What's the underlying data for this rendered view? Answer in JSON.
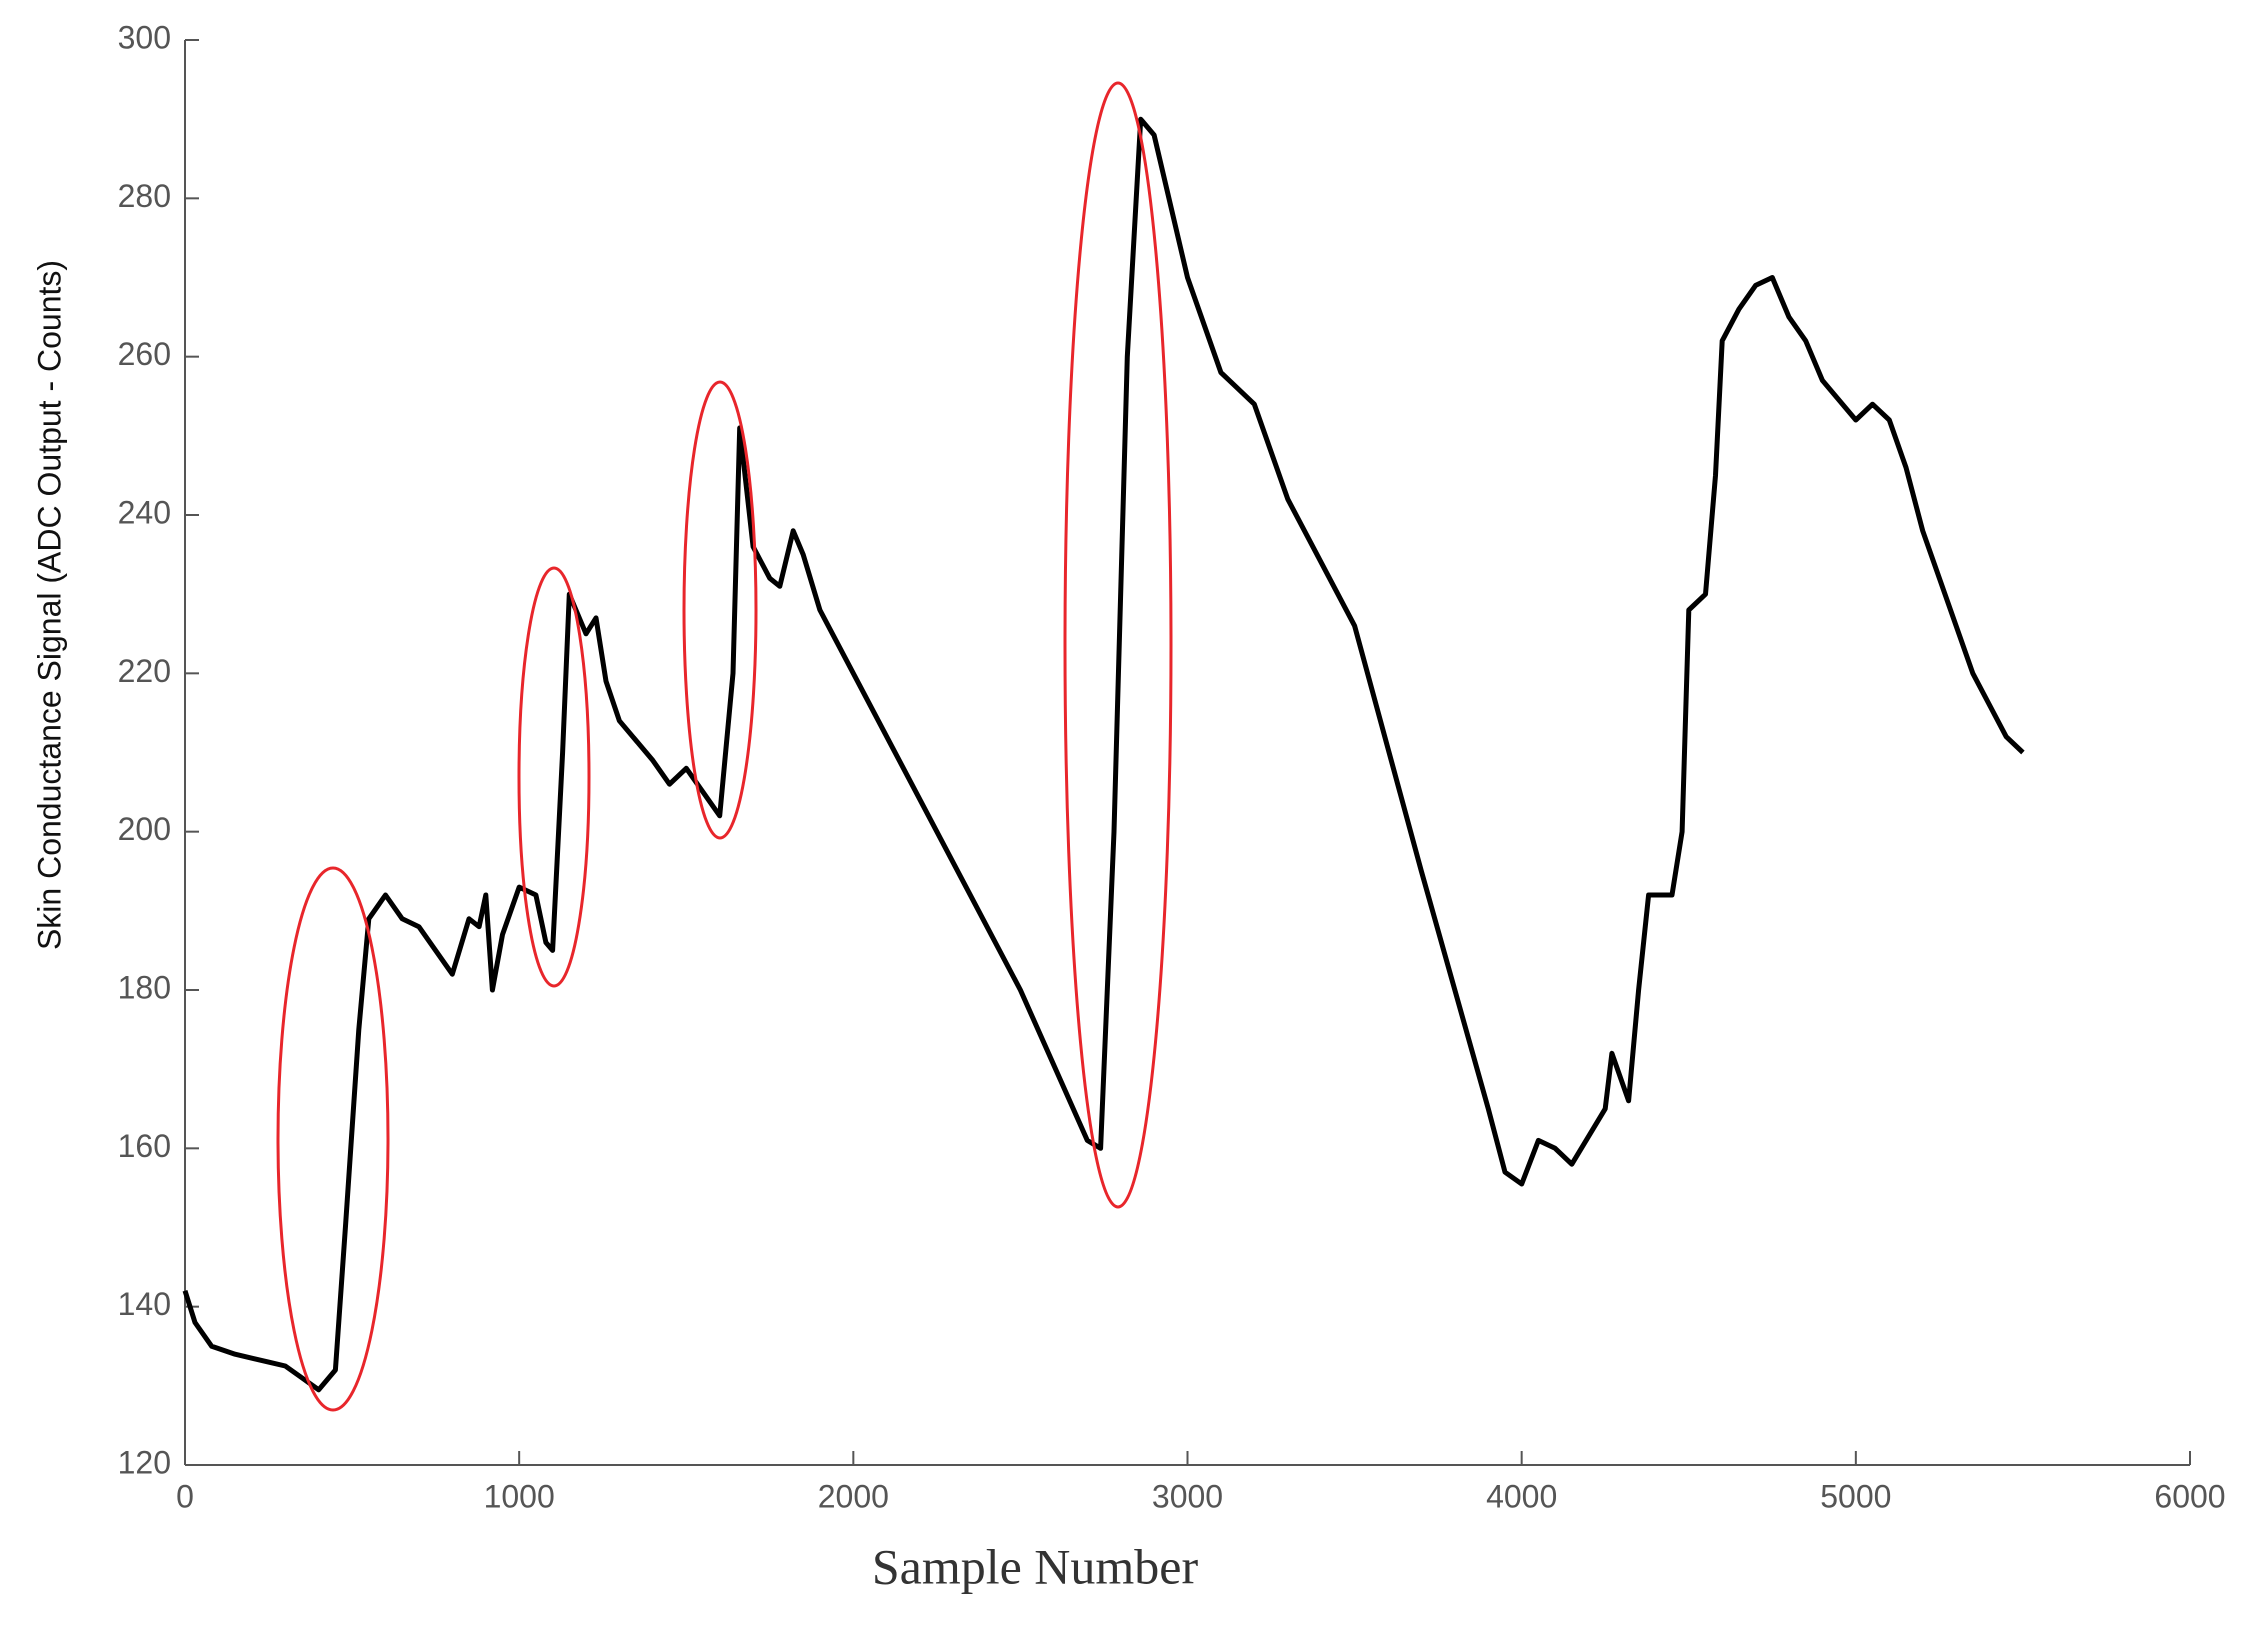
{
  "chart_data": {
    "type": "line",
    "x_label": "Sample Number",
    "y_label": "Skin Conductance Signal (ADC Output - Counts)",
    "xlim": [
      0,
      6000
    ],
    "xticks": [
      0,
      1000,
      2000,
      3000,
      4000,
      5000,
      6000
    ],
    "ylim": [
      120,
      300
    ],
    "yticks": [
      120,
      140,
      160,
      180,
      200,
      220,
      240,
      260,
      280,
      300
    ],
    "grid": false,
    "series": [
      {
        "color": "#000000",
        "x": [
          0,
          30,
          80,
          150,
          250,
          300,
          350,
          400,
          450,
          480,
          520,
          550,
          600,
          650,
          700,
          750,
          800,
          850,
          880,
          900,
          920,
          950,
          1000,
          1050,
          1080,
          1100,
          1130,
          1150,
          1200,
          1230,
          1260,
          1300,
          1400,
          1450,
          1500,
          1550,
          1600,
          1640,
          1660,
          1700,
          1750,
          1780,
          1820,
          1850,
          1900,
          2500,
          2700,
          2740,
          2780,
          2820,
          2860,
          2900,
          3000,
          3100,
          3150,
          3200,
          3300,
          3500,
          3700,
          3900,
          3950,
          4000,
          4050,
          4100,
          4150,
          4250,
          4270,
          4320,
          4350,
          4380,
          4450,
          4480,
          4500,
          4550,
          4580,
          4600,
          4650,
          4700,
          4750,
          4800,
          4850,
          4900,
          5000,
          5050,
          5100,
          5150,
          5200,
          5250,
          5300,
          5350,
          5400,
          5450,
          5500
        ],
        "values": [
          142,
          138,
          135,
          134,
          133,
          132.5,
          131,
          129.5,
          132,
          150,
          175,
          189,
          192,
          189,
          188,
          185,
          182,
          189,
          188,
          192,
          180,
          187,
          193,
          192,
          186,
          185,
          210,
          230,
          225,
          227,
          219,
          214,
          209,
          206,
          208,
          205,
          202,
          220,
          251,
          236,
          232,
          231,
          238,
          235,
          228,
          180,
          161,
          160,
          200,
          260,
          290,
          288,
          270,
          258,
          256,
          254,
          242,
          226,
          195,
          165,
          157,
          155.5,
          161,
          160,
          158,
          165,
          172,
          166,
          180,
          192,
          192,
          200,
          228,
          230,
          245,
          262,
          266,
          269,
          270,
          265,
          262,
          257,
          252,
          254,
          252,
          246,
          238,
          232,
          226,
          220,
          216,
          212,
          210
        ]
      }
    ]
  }
}
